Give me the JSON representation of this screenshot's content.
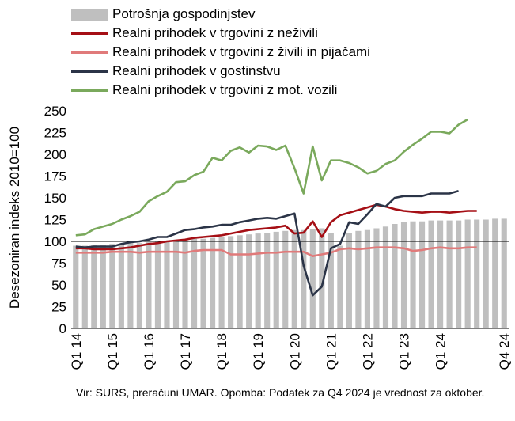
{
  "chart_data": {
    "type": "bar+line",
    "ylabel": "Desezoniran indeks 2010=100",
    "ylim": [
      0,
      250
    ],
    "yticks": [
      0,
      25,
      50,
      75,
      100,
      125,
      150,
      175,
      200,
      225,
      250
    ],
    "xtick_labels": [
      "Q1 14",
      "Q1 15",
      "Q1 16",
      "Q1 17",
      "Q1 18",
      "Q1 19",
      "Q1 20",
      "Q1 21",
      "Q1 22",
      "Q1 23",
      "Q1 24",
      "Q4 24"
    ],
    "grid": false,
    "legend_position": "top",
    "bar_series": {
      "name": "Potrošnja gospodinjstev",
      "color": "#bfbfbf",
      "values": [
        95,
        95,
        96,
        96,
        97,
        97,
        98,
        98,
        99,
        100,
        101,
        101,
        102,
        103,
        103,
        104,
        105,
        106,
        107,
        108,
        109,
        110,
        111,
        112,
        113,
        113,
        114,
        115,
        110,
        95,
        110,
        112,
        113,
        115,
        117,
        120,
        122,
        123,
        123,
        124,
        124,
        124,
        124,
        125,
        125,
        125,
        126,
        126
      ]
    },
    "line_series": [
      {
        "name": "Realni prihodek v trgovini z neživili",
        "color": "#a50f15",
        "values": [
          92,
          92,
          91,
          91,
          91,
          92,
          93,
          95,
          97,
          98,
          100,
          101,
          102,
          104,
          105,
          106,
          107,
          109,
          111,
          113,
          114,
          115,
          116,
          118,
          109,
          110,
          123,
          105,
          122,
          130,
          133,
          136,
          139,
          142,
          140,
          137,
          135,
          134,
          133,
          134,
          134,
          133,
          134,
          135,
          135
        ]
      },
      {
        "name": "Realni prihodek v trgovini z živili in pijačami",
        "color": "#e07a7a",
        "values": [
          87,
          87,
          87,
          87,
          88,
          88,
          88,
          87,
          88,
          88,
          88,
          88,
          87,
          89,
          90,
          90,
          90,
          85,
          85,
          85,
          86,
          87,
          87,
          88,
          88,
          88,
          83,
          85,
          87,
          91,
          92,
          91,
          92,
          93,
          93,
          93,
          92,
          89,
          90,
          92,
          93,
          92,
          92,
          93,
          93
        ]
      },
      {
        "name": "Realni prihodek v gostinstvu",
        "color": "#2b3447",
        "values": [
          94,
          93,
          94,
          94,
          94,
          97,
          99,
          100,
          102,
          105,
          105,
          109,
          113,
          114,
          116,
          117,
          119,
          119,
          122,
          124,
          126,
          127,
          126,
          129,
          132,
          72,
          38,
          48,
          92,
          97,
          122,
          120,
          131,
          143,
          140,
          150,
          152,
          152,
          152,
          155,
          155,
          155,
          158
        ]
      },
      {
        "name": "Realni prihodek v trgovini z mot. vozili",
        "color": "#7aa95c",
        "values": [
          107,
          108,
          114,
          117,
          120,
          125,
          129,
          134,
          146,
          152,
          157,
          168,
          169,
          176,
          180,
          196,
          193,
          204,
          208,
          202,
          210,
          209,
          205,
          210,
          184,
          155,
          209,
          170,
          193,
          193,
          190,
          185,
          178,
          181,
          189,
          193,
          203,
          211,
          218,
          226,
          226,
          224,
          234,
          240
        ]
      }
    ]
  },
  "note": "Vir: SURS, preračuni UMAR. Opomba: Podatek za Q4 2024 je vrednost za oktober."
}
